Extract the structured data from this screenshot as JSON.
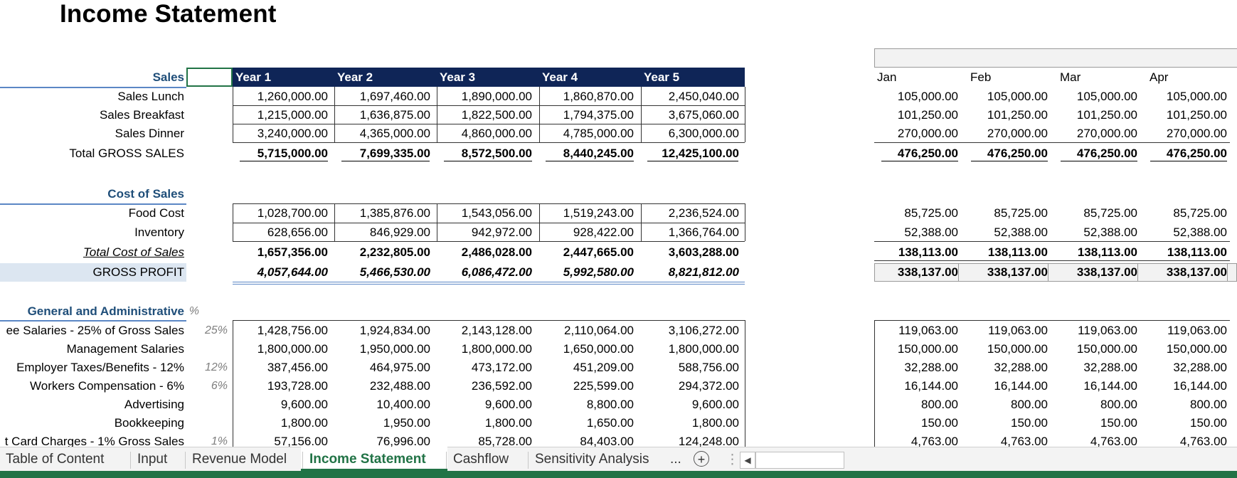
{
  "title": "Income Statement",
  "years": [
    "Year 1",
    "Year 2",
    "Year 3",
    "Year 4",
    "Year 5"
  ],
  "months": [
    "Jan",
    "Feb",
    "Mar",
    "Apr"
  ],
  "sales": {
    "header": "Sales",
    "rows": [
      {
        "label": "Sales Lunch",
        "years": [
          "1,260,000.00",
          "1,697,460.00",
          "1,890,000.00",
          "1,860,870.00",
          "2,450,040.00"
        ],
        "months": [
          "105,000.00",
          "105,000.00",
          "105,000.00",
          "105,000.00"
        ]
      },
      {
        "label": "Sales Breakfast",
        "years": [
          "1,215,000.00",
          "1,636,875.00",
          "1,822,500.00",
          "1,794,375.00",
          "3,675,060.00"
        ],
        "months": [
          "101,250.00",
          "101,250.00",
          "101,250.00",
          "101,250.00"
        ]
      },
      {
        "label": "Sales Dinner",
        "years": [
          "3,240,000.00",
          "4,365,000.00",
          "4,860,000.00",
          "4,785,000.00",
          "6,300,000.00"
        ],
        "months": [
          "270,000.00",
          "270,000.00",
          "270,000.00",
          "270,000.00"
        ]
      }
    ],
    "total": {
      "label": "Total GROSS SALES",
      "years": [
        "5,715,000.00",
        "7,699,335.00",
        "8,572,500.00",
        "8,440,245.00",
        "12,425,100.00"
      ],
      "months": [
        "476,250.00",
        "476,250.00",
        "476,250.00",
        "476,250.00"
      ]
    }
  },
  "cost": {
    "header": "Cost of Sales",
    "rows": [
      {
        "label": "Food Cost",
        "years": [
          "1,028,700.00",
          "1,385,876.00",
          "1,543,056.00",
          "1,519,243.00",
          "2,236,524.00"
        ],
        "months": [
          "85,725.00",
          "85,725.00",
          "85,725.00",
          "85,725.00"
        ]
      },
      {
        "label": "Inventory",
        "years": [
          "628,656.00",
          "846,929.00",
          "942,972.00",
          "928,422.00",
          "1,366,764.00"
        ],
        "months": [
          "52,388.00",
          "52,388.00",
          "52,388.00",
          "52,388.00"
        ]
      }
    ],
    "total": {
      "label": "Total Cost of Sales",
      "years": [
        "1,657,356.00",
        "2,232,805.00",
        "2,486,028.00",
        "2,447,665.00",
        "3,603,288.00"
      ],
      "months": [
        "138,113.00",
        "138,113.00",
        "138,113.00",
        "138,113.00"
      ]
    },
    "gross_profit": {
      "label": "GROSS PROFIT",
      "years": [
        "4,057,644.00",
        "5,466,530.00",
        "6,086,472.00",
        "5,992,580.00",
        "8,821,812.00"
      ],
      "months": [
        "338,137.00",
        "338,137.00",
        "338,137.00",
        "338,137.00"
      ]
    }
  },
  "ga": {
    "header": "General and Administrative",
    "pct_header": "%",
    "rows": [
      {
        "label": "ee Salaries - 25% of Gross Sales",
        "pct": "25%",
        "years": [
          "1,428,756.00",
          "1,924,834.00",
          "2,143,128.00",
          "2,110,064.00",
          "3,106,272.00"
        ],
        "months": [
          "119,063.00",
          "119,063.00",
          "119,063.00",
          "119,063.00"
        ]
      },
      {
        "label": "Management Salaries",
        "pct": "",
        "years": [
          "1,800,000.00",
          "1,950,000.00",
          "1,800,000.00",
          "1,650,000.00",
          "1,800,000.00"
        ],
        "months": [
          "150,000.00",
          "150,000.00",
          "150,000.00",
          "150,000.00"
        ]
      },
      {
        "label": "Employer Taxes/Benefits - 12%",
        "pct": "12%",
        "years": [
          "387,456.00",
          "464,975.00",
          "473,172.00",
          "451,209.00",
          "588,756.00"
        ],
        "months": [
          "32,288.00",
          "32,288.00",
          "32,288.00",
          "32,288.00"
        ]
      },
      {
        "label": "Workers Compensation - 6%",
        "pct": "6%",
        "years": [
          "193,728.00",
          "232,488.00",
          "236,592.00",
          "225,599.00",
          "294,372.00"
        ],
        "months": [
          "16,144.00",
          "16,144.00",
          "16,144.00",
          "16,144.00"
        ]
      },
      {
        "label": "Advertising",
        "pct": "",
        "years": [
          "9,600.00",
          "10,400.00",
          "9,600.00",
          "8,800.00",
          "9,600.00"
        ],
        "months": [
          "800.00",
          "800.00",
          "800.00",
          "800.00"
        ]
      },
      {
        "label": "Bookkeeping",
        "pct": "",
        "years": [
          "1,800.00",
          "1,950.00",
          "1,800.00",
          "1,650.00",
          "1,800.00"
        ],
        "months": [
          "150.00",
          "150.00",
          "150.00",
          "150.00"
        ]
      },
      {
        "label": "t Card Charges - 1% Gross Sales",
        "pct": "1%",
        "years": [
          "57,156.00",
          "76,996.00",
          "85,728.00",
          "84,403.00",
          "124,248.00"
        ],
        "months": [
          "4,763.00",
          "4,763.00",
          "4,763.00",
          "4,763.00"
        ]
      }
    ]
  },
  "sheet_tabs": [
    "Table of Content",
    "Input",
    "Revenue Model",
    "Income Statement",
    "Cashflow",
    "Sensitivity Analysis"
  ],
  "active_tab": "Income Statement",
  "tab_more": "...",
  "tab_add": "+",
  "colors": {
    "header_blue": "#0f2557",
    "label_blue": "#1f4e79",
    "excel_green": "#217346",
    "gp_fill": "#dce6f1"
  }
}
